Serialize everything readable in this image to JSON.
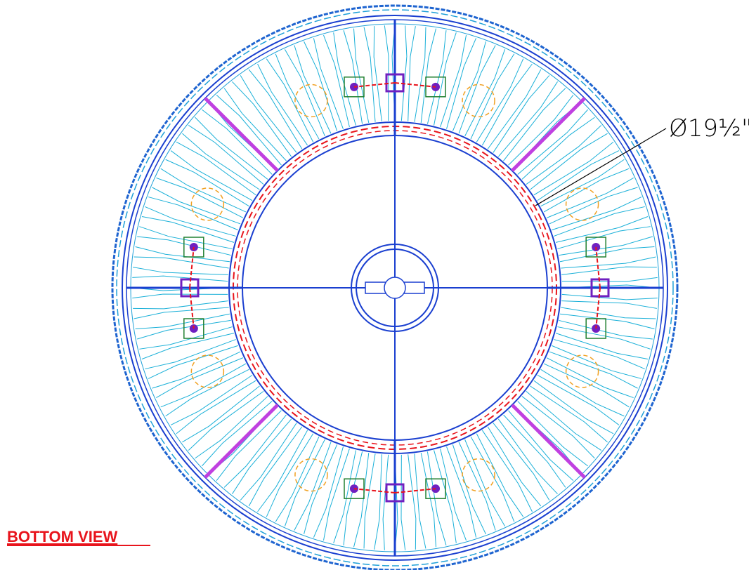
{
  "dimension": {
    "label": "Ø19½\""
  },
  "view_label": "BOTTOM VIEW"
}
